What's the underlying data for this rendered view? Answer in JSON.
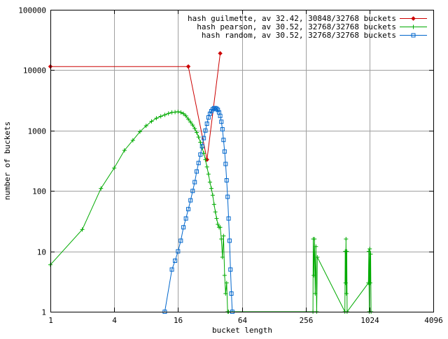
{
  "chart_data": {
    "type": "line",
    "title": "",
    "xlabel": "bucket length",
    "ylabel": "number of buckets",
    "x_scale": "log2",
    "y_scale": "log10",
    "xlim": [
      1,
      4096
    ],
    "ylim": [
      1,
      100000
    ],
    "x_ticks": [
      1,
      4,
      16,
      64,
      256,
      1024,
      4096
    ],
    "x_tick_labels": [
      "1",
      "4",
      "16",
      "64",
      "256",
      "1024",
      "4096"
    ],
    "y_ticks": [
      1,
      10,
      100,
      1000,
      10000,
      100000
    ],
    "y_tick_labels": [
      "1",
      "10",
      "100",
      "1000",
      "10000",
      "100000"
    ],
    "grid": true,
    "legend_position": "top-right",
    "series": [
      {
        "name": "hash guilmette, av 32.42, 30848/32768 buckets",
        "color": "#cc0000",
        "marker": "diamond",
        "points": [
          [
            1,
            11500
          ],
          [
            20,
            11500
          ],
          [
            30,
            330
          ],
          [
            40,
            19000
          ]
        ]
      },
      {
        "name": "hash pearson, av 30.52, 32768/32768 buckets",
        "color": "#00aa00",
        "marker": "plus",
        "points": [
          [
            1,
            6
          ],
          [
            2,
            23
          ],
          [
            3,
            110
          ],
          [
            4,
            240
          ],
          [
            5,
            470
          ],
          [
            6,
            690
          ],
          [
            7,
            960
          ],
          [
            8,
            1200
          ],
          [
            9,
            1420
          ],
          [
            10,
            1600
          ],
          [
            11,
            1720
          ],
          [
            12,
            1820
          ],
          [
            13,
            1920
          ],
          [
            14,
            2000
          ],
          [
            15,
            2020
          ],
          [
            16,
            2050
          ],
          [
            17,
            2000
          ],
          [
            18,
            1900
          ],
          [
            19,
            1750
          ],
          [
            20,
            1550
          ],
          [
            21,
            1380
          ],
          [
            22,
            1230
          ],
          [
            23,
            1080
          ],
          [
            24,
            930
          ],
          [
            25,
            780
          ],
          [
            26,
            640
          ],
          [
            27,
            520
          ],
          [
            28,
            420
          ],
          [
            29,
            330
          ],
          [
            30,
            250
          ],
          [
            31,
            190
          ],
          [
            32,
            140
          ],
          [
            33,
            110
          ],
          [
            34,
            85
          ],
          [
            35,
            60
          ],
          [
            36,
            45
          ],
          [
            37,
            35
          ],
          [
            38,
            28
          ],
          [
            39,
            25
          ],
          [
            40,
            25
          ],
          [
            41,
            16
          ],
          [
            42,
            8
          ],
          [
            43,
            18
          ],
          [
            44,
            4
          ],
          [
            45,
            2
          ],
          [
            46,
            3
          ],
          [
            47,
            1
          ],
          [
            48,
            1
          ],
          [
            300,
            1
          ],
          [
            302,
            16
          ],
          [
            305,
            4
          ],
          [
            310,
            16
          ],
          [
            315,
            2
          ],
          [
            320,
            12
          ],
          [
            325,
            1
          ],
          [
            330,
            8
          ],
          [
            600,
            1
          ],
          [
            605,
            10
          ],
          [
            610,
            3
          ],
          [
            615,
            16
          ],
          [
            620,
            2
          ],
          [
            625,
            10
          ],
          [
            630,
            1
          ],
          [
            1000,
            3
          ],
          [
            1010,
            10
          ],
          [
            1020,
            1
          ],
          [
            1030,
            11
          ],
          [
            1040,
            3
          ],
          [
            1050,
            9
          ],
          [
            1060,
            1
          ]
        ]
      },
      {
        "name": "hash random, av 30.52, 32768/32768 buckets",
        "color": "#0066cc",
        "marker": "square",
        "points": [
          [
            12,
            1
          ],
          [
            14,
            5
          ],
          [
            15,
            7
          ],
          [
            16,
            10
          ],
          [
            17,
            15
          ],
          [
            18,
            25
          ],
          [
            19,
            35
          ],
          [
            20,
            50
          ],
          [
            21,
            70
          ],
          [
            22,
            100
          ],
          [
            23,
            140
          ],
          [
            24,
            210
          ],
          [
            25,
            290
          ],
          [
            26,
            400
          ],
          [
            27,
            550
          ],
          [
            28,
            750
          ],
          [
            29,
            1000
          ],
          [
            30,
            1300
          ],
          [
            31,
            1650
          ],
          [
            32,
            1900
          ],
          [
            33,
            2100
          ],
          [
            34,
            2250
          ],
          [
            35,
            2350
          ],
          [
            36,
            2350
          ],
          [
            37,
            2300
          ],
          [
            38,
            2200
          ],
          [
            39,
            2000
          ],
          [
            40,
            1750
          ],
          [
            41,
            1400
          ],
          [
            42,
            1050
          ],
          [
            43,
            700
          ],
          [
            44,
            450
          ],
          [
            45,
            280
          ],
          [
            46,
            150
          ],
          [
            47,
            80
          ],
          [
            48,
            35
          ],
          [
            49,
            15
          ],
          [
            50,
            5
          ],
          [
            51,
            2
          ],
          [
            52,
            1
          ]
        ]
      }
    ]
  }
}
